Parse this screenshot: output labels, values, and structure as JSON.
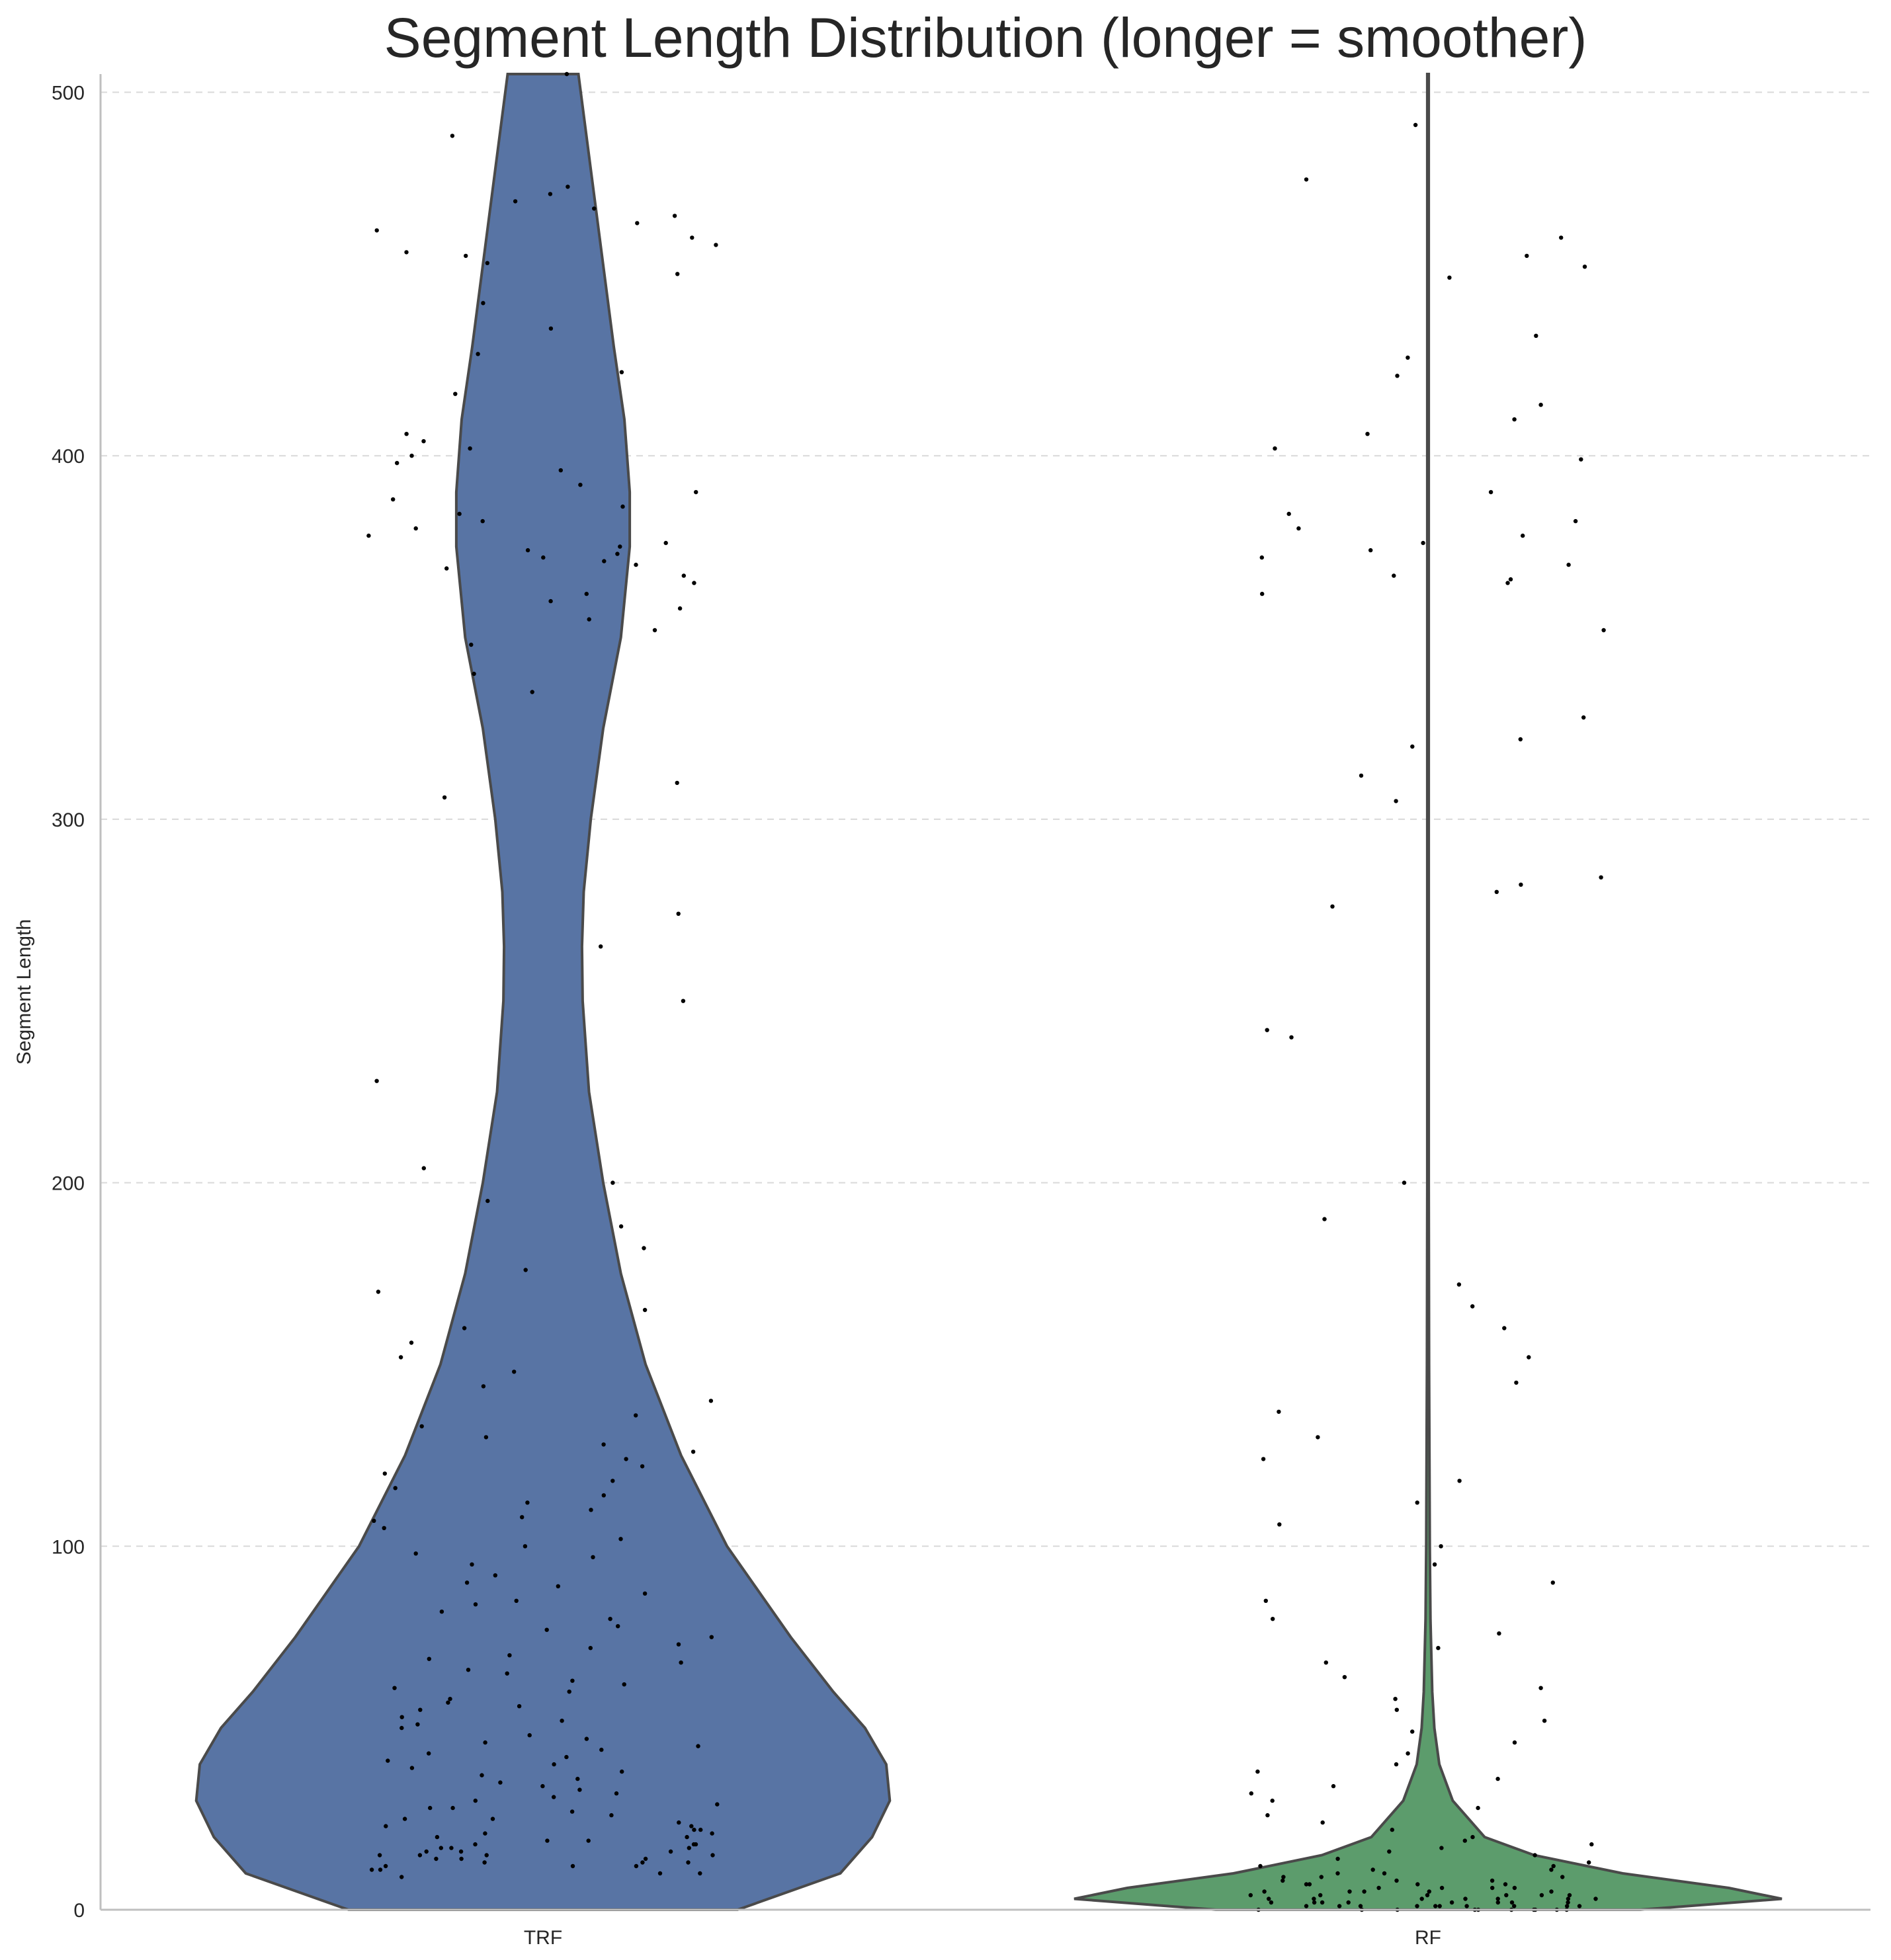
{
  "chart_data": {
    "type": "violin",
    "title": "Segment Length Distribution (longer = smoother)",
    "xlabel": "",
    "ylabel": "Segment Length",
    "ylim": [
      0,
      505
    ],
    "yticks": [
      0,
      100,
      200,
      300,
      400,
      500
    ],
    "grid": "horizontal dashed",
    "categories": [
      "TRF",
      "RF"
    ],
    "colors": {
      "TRF": "#5874a4",
      "RF": "#5c9c6c",
      "points": "#000000",
      "outline": "#4a4a4a"
    },
    "series": [
      {
        "category": "TRF",
        "color": "#5874a4",
        "density_profile": [
          [
            0,
            0.55
          ],
          [
            10,
            0.84
          ],
          [
            20,
            0.93
          ],
          [
            30,
            0.98
          ],
          [
            40,
            0.97
          ],
          [
            50,
            0.91
          ],
          [
            60,
            0.82
          ],
          [
            75,
            0.7
          ],
          [
            100,
            0.52
          ],
          [
            125,
            0.39
          ],
          [
            150,
            0.29
          ],
          [
            175,
            0.22
          ],
          [
            200,
            0.17
          ],
          [
            225,
            0.13
          ],
          [
            250,
            0.112
          ],
          [
            265,
            0.11
          ],
          [
            280,
            0.115
          ],
          [
            300,
            0.135
          ],
          [
            325,
            0.17
          ],
          [
            350,
            0.22
          ],
          [
            375,
            0.245
          ],
          [
            390,
            0.245
          ],
          [
            410,
            0.23
          ],
          [
            430,
            0.2
          ],
          [
            460,
            0.16
          ],
          [
            490,
            0.12
          ],
          [
            505,
            0.1
          ]
        ],
        "point_values": [
          9,
          10,
          10,
          11,
          11,
          12,
          12,
          12,
          13,
          13,
          13,
          14,
          14,
          14,
          15,
          15,
          15,
          15,
          16,
          16,
          16,
          17,
          17,
          17,
          18,
          18,
          18,
          19,
          19,
          20,
          20,
          21,
          21,
          22,
          22,
          23,
          23,
          24,
          25,
          25,
          26,
          27,
          28,
          28,
          29,
          30,
          31,
          32,
          33,
          34,
          35,
          36,
          37,
          38,
          39,
          40,
          41,
          42,
          43,
          44,
          45,
          46,
          47,
          48,
          50,
          51,
          52,
          53,
          55,
          56,
          57,
          58,
          60,
          61,
          62,
          63,
          65,
          66,
          68,
          69,
          70,
          72,
          73,
          75,
          77,
          78,
          80,
          82,
          84,
          85,
          87,
          89,
          90,
          92,
          95,
          97,
          98,
          100,
          102,
          105,
          107,
          108,
          110,
          112,
          114,
          116,
          118,
          120,
          122,
          124,
          126,
          128,
          130,
          133,
          136,
          140,
          144,
          148,
          152,
          156,
          160,
          165,
          170,
          176,
          182,
          188,
          195,
          200,
          204,
          228,
          250,
          265,
          274,
          306,
          310,
          335,
          340,
          348,
          352,
          355,
          358,
          360,
          362,
          365,
          367,
          369,
          370,
          371,
          372,
          373,
          374,
          375,
          376,
          378,
          380,
          382,
          384,
          386,
          388,
          390,
          392,
          396,
          398,
          400,
          402,
          404,
          406,
          417,
          423,
          428,
          435,
          442,
          450,
          453,
          455,
          456,
          458,
          460,
          462,
          464,
          466,
          468,
          470,
          472,
          474,
          488,
          505
        ]
      },
      {
        "category": "RF",
        "color": "#5c9c6c",
        "density_profile": [
          [
            0,
            0.6
          ],
          [
            3,
            1.0
          ],
          [
            6,
            0.85
          ],
          [
            10,
            0.55
          ],
          [
            15,
            0.3
          ],
          [
            20,
            0.16
          ],
          [
            30,
            0.07
          ],
          [
            40,
            0.032
          ],
          [
            50,
            0.018
          ],
          [
            60,
            0.012
          ],
          [
            80,
            0.007
          ],
          [
            100,
            0.005
          ],
          [
            150,
            0.003
          ],
          [
            200,
            0.002
          ],
          [
            300,
            0.002
          ],
          [
            400,
            0.002
          ],
          [
            505,
            0.002
          ]
        ],
        "point_values": [
          0,
          0,
          0,
          0,
          0,
          0,
          0,
          0,
          0,
          0,
          1,
          1,
          1,
          1,
          1,
          1,
          1,
          1,
          1,
          1,
          2,
          2,
          2,
          2,
          2,
          2,
          2,
          2,
          3,
          3,
          3,
          3,
          3,
          3,
          3,
          4,
          4,
          4,
          4,
          4,
          4,
          5,
          5,
          5,
          5,
          5,
          6,
          6,
          6,
          6,
          7,
          7,
          7,
          7,
          8,
          8,
          8,
          9,
          9,
          9,
          10,
          10,
          11,
          11,
          12,
          12,
          13,
          14,
          15,
          16,
          17,
          18,
          19,
          20,
          22,
          24,
          26,
          28,
          30,
          32,
          34,
          36,
          38,
          40,
          43,
          46,
          49,
          52,
          55,
          58,
          61,
          64,
          68,
          72,
          76,
          80,
          85,
          90,
          95,
          100,
          106,
          112,
          118,
          124,
          130,
          137,
          145,
          152,
          160,
          166,
          172,
          190,
          200,
          240,
          242,
          276,
          280,
          282,
          284,
          305,
          312,
          320,
          322,
          328,
          352,
          362,
          365,
          366,
          367,
          370,
          372,
          374,
          376,
          378,
          380,
          382,
          384,
          390,
          399,
          402,
          406,
          410,
          414,
          422,
          427,
          433,
          449,
          452,
          455,
          460,
          476,
          491
        ]
      }
    ]
  }
}
